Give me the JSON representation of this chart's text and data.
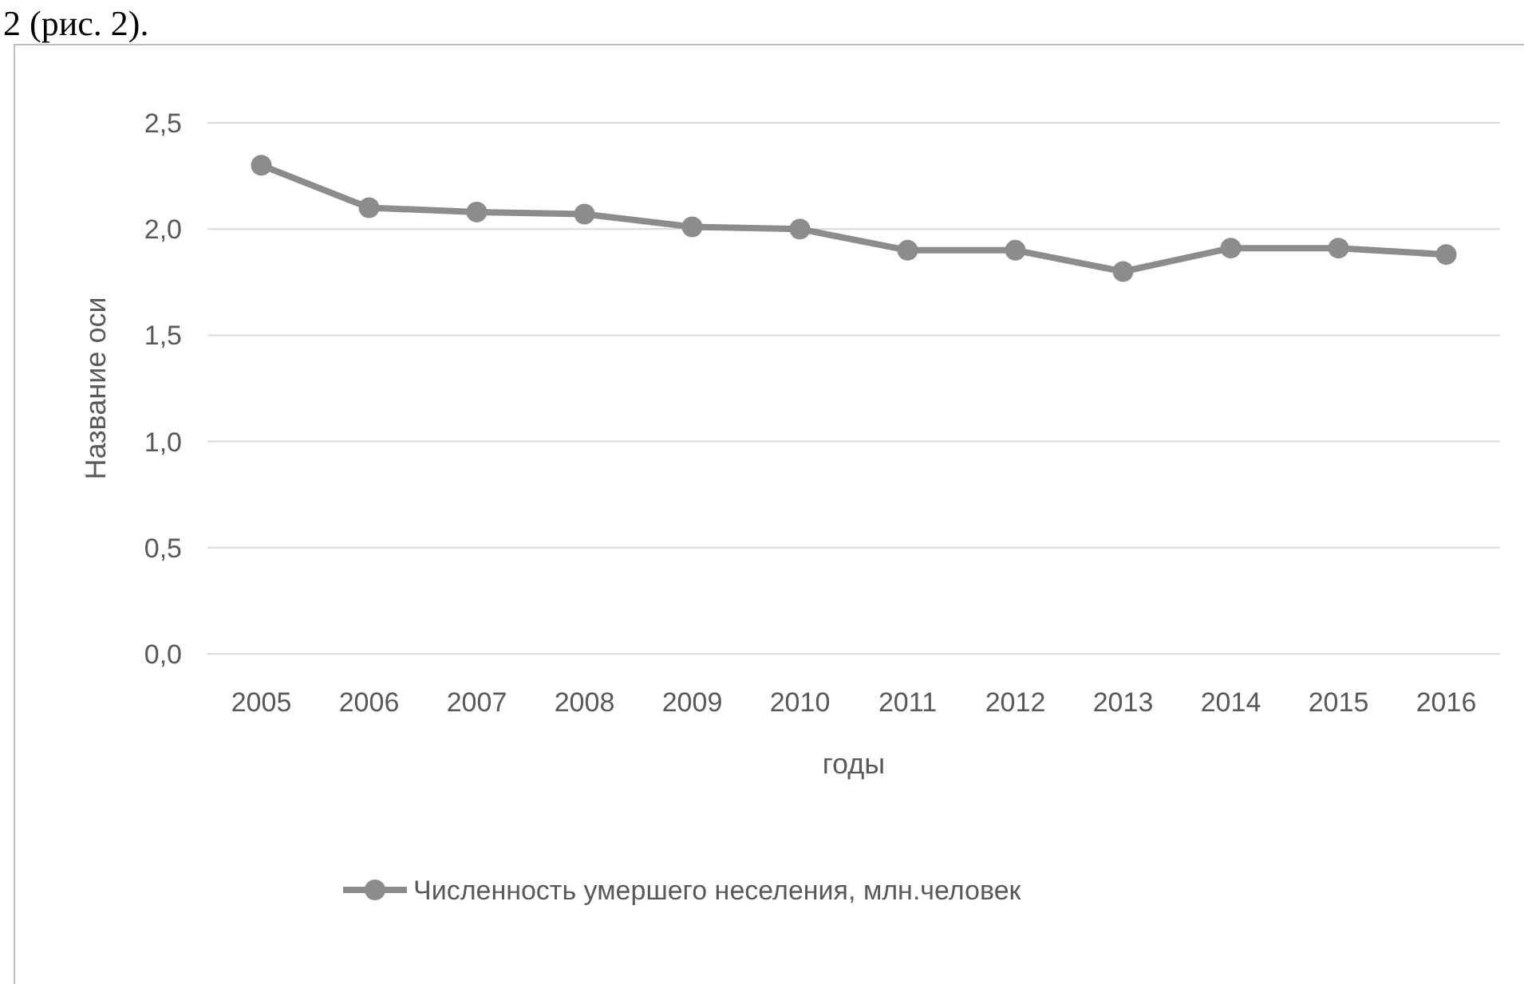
{
  "chart_data": {
    "type": "line",
    "xlabel": "годы",
    "ylabel": "Название оси",
    "annotations": [
      "2 (рис. 2)."
    ],
    "categories": [
      "2005",
      "2006",
      "2007",
      "2008",
      "2009",
      "2010",
      "2011",
      "2012",
      "2013",
      "2014",
      "2015",
      "2016"
    ],
    "series": [
      {
        "name": "Численность умершего неселения, млн.человек",
        "color": "#8c8c8c",
        "values": [
          2.3,
          2.1,
          2.08,
          2.07,
          2.01,
          2.0,
          1.9,
          1.9,
          1.8,
          1.91,
          1.91,
          1.88
        ]
      }
    ],
    "ylim": [
      0,
      2.5
    ],
    "yticks": [
      {
        "value": 0,
        "label": "0,0"
      },
      {
        "value": 0.5,
        "label": "0,5"
      },
      {
        "value": 1,
        "label": "1,0"
      },
      {
        "value": 1.5,
        "label": "1,5"
      },
      {
        "value": 2,
        "label": "2,0"
      },
      {
        "value": 2.5,
        "label": "2,5"
      }
    ],
    "grid": "y",
    "legend": "bottom",
    "marker": "circle",
    "line_style": "solid"
  }
}
